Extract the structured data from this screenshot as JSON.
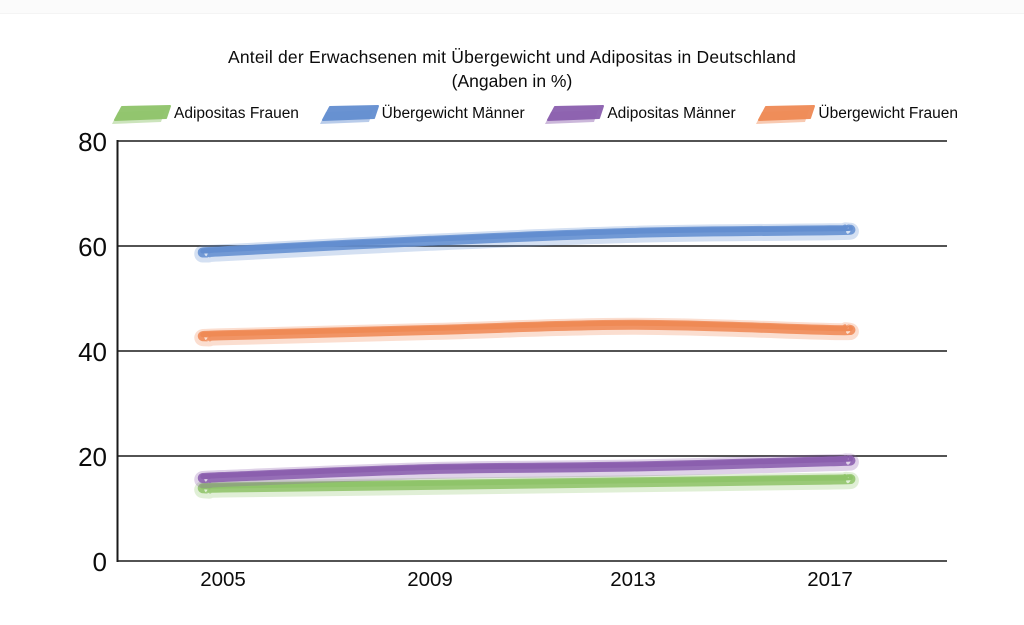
{
  "page": {
    "background": "#ffffff",
    "top_strip_color": "#fbfbfb",
    "gridline_color": "#1a1a1a",
    "text_color": "#0b0b0b"
  },
  "chart_data": {
    "type": "line",
    "title": "Anteil der Erwachsenen mit Übergewicht und Adipositas in Deutschland",
    "subtitle": "(Angaben in %)",
    "categories": [
      "2005",
      "2009",
      "2013",
      "2017"
    ],
    "x": [
      2005,
      2009,
      2013,
      2017
    ],
    "series": [
      {
        "name": "Adipositas Frauen",
        "color": "#8fc46a",
        "values": [
          14,
          14.5,
          15,
          15.5
        ]
      },
      {
        "name": "Übergewicht Männer",
        "color": "#638ed0",
        "values": [
          59,
          61,
          62.5,
          63
        ]
      },
      {
        "name": "Adipositas Männer",
        "color": "#8b5fae",
        "values": [
          16,
          17.5,
          18,
          19
        ]
      },
      {
        "name": "Übergewicht Frauen",
        "color": "#ef8a55",
        "values": [
          43,
          44,
          45,
          44
        ]
      }
    ],
    "ylim": [
      0,
      80
    ],
    "yticks": [
      0,
      20,
      40,
      60,
      80
    ],
    "xlabel": "",
    "ylabel": "",
    "grid": "horizontal",
    "legend_position": "top",
    "style": "hand-drawn marker strokes"
  }
}
